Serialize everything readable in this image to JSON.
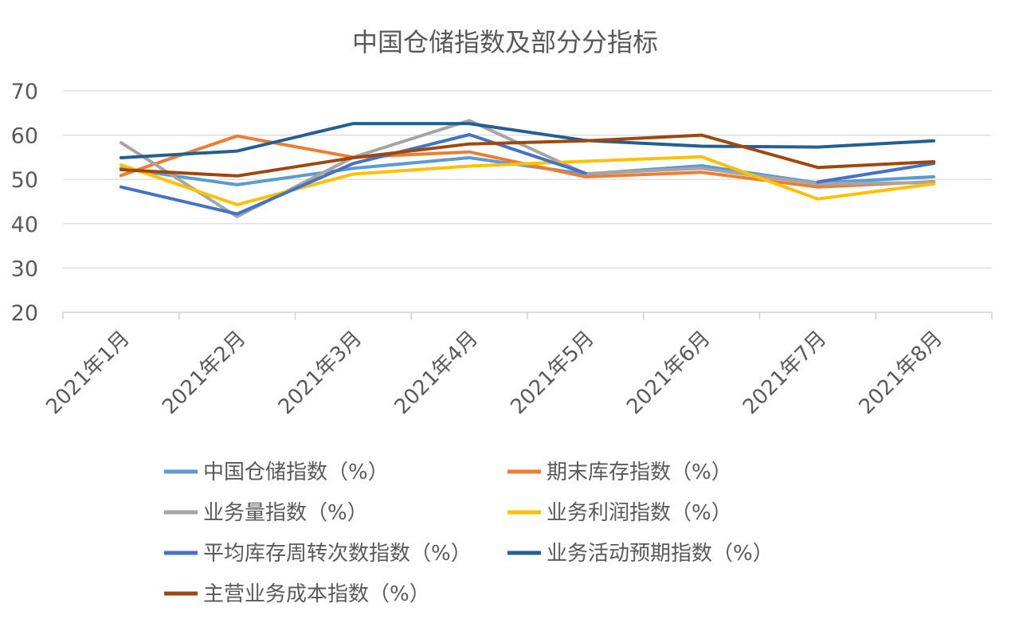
{
  "chart_data": {
    "type": "line",
    "title": "中国仓储指数及部分分指标",
    "xlabel": "",
    "ylabel": "",
    "ylim": [
      20,
      70
    ],
    "yticks": [
      "20",
      "30",
      "40",
      "50",
      "60",
      "70"
    ],
    "categories": [
      "2021年1月",
      "2021年2月",
      "2021年3月",
      "2021年4月",
      "2021年5月",
      "2021年6月",
      "2021年7月",
      "2021年8月"
    ],
    "grid": true,
    "legend_position": "bottom",
    "series": [
      {
        "name": "中国仓储指数（%）",
        "color": "#5B9BD5",
        "values": [
          52.5,
          48.8,
          52.5,
          54.9,
          51.2,
          53.1,
          49.2,
          50.6
        ]
      },
      {
        "name": "期末库存指数（%）",
        "color": "#ED7D31",
        "values": [
          50.9,
          59.8,
          55.0,
          56.2,
          50.6,
          51.6,
          48.3,
          49.5
        ]
      },
      {
        "name": "业务量指数（%）",
        "color": "#A5A5A5",
        "values": [
          58.3,
          41.6,
          55.0,
          63.3,
          51.3,
          52.5,
          49.0,
          49.3
        ]
      },
      {
        "name": "业务利润指数（%）",
        "color": "#FFC000",
        "values": [
          53.3,
          44.3,
          51.2,
          53.0,
          54.1,
          55.1,
          45.6,
          49.0
        ]
      },
      {
        "name": "平均库存周转次数指数（%）",
        "color": "#4472C4",
        "values": [
          48.3,
          42.2,
          53.6,
          60.1,
          51.4,
          null,
          49.4,
          53.6
        ]
      },
      {
        "name": "业务活动预期指数（%）",
        "color": "#255E91",
        "values": [
          54.9,
          56.4,
          62.6,
          62.6,
          58.8,
          57.5,
          57.3,
          58.7
        ]
      },
      {
        "name": "主营业务成本指数（%）",
        "color": "#9E480E",
        "values": [
          52.2,
          50.8,
          54.9,
          58.0,
          58.7,
          60.0,
          52.7,
          54.0
        ]
      }
    ]
  }
}
